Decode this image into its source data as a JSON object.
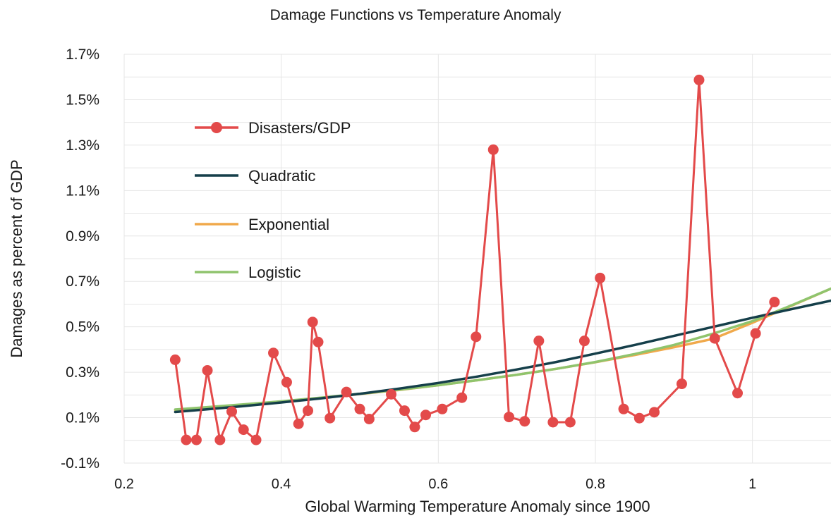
{
  "chart_data": {
    "type": "line",
    "title": "Damage Functions vs Temperature Anomaly",
    "xlabel": "Global Warming Temperature Anomaly since 1900",
    "ylabel": "Damages as percent of GDP",
    "xlim": [
      0.2,
      1.1
    ],
    "ylim": [
      -0.1,
      1.7
    ],
    "x_ticks": [
      0.2,
      0.4,
      0.6,
      0.8,
      1.0
    ],
    "x_tick_labels": [
      "0.2",
      "0.4",
      "0.6",
      "0.8",
      "1"
    ],
    "y_ticks": [
      -0.1,
      0.1,
      0.3,
      0.5,
      0.7,
      0.9,
      1.1,
      1.3,
      1.5,
      1.7
    ],
    "y_tick_labels": [
      "-0.1%",
      "0.1%",
      "0.3%",
      "0.5%",
      "0.7%",
      "0.9%",
      "1.1%",
      "1.3%",
      "1.5%",
      "1.7%"
    ],
    "grid": true,
    "legend_position": "upper-left",
    "series": [
      {
        "name": "Disasters/GDP",
        "style": "line-markers",
        "color": "#e34a4a",
        "x": [
          0.265,
          0.279,
          0.292,
          0.306,
          0.322,
          0.337,
          0.352,
          0.368,
          0.39,
          0.407,
          0.422,
          0.434,
          0.44,
          0.447,
          0.462,
          0.483,
          0.5,
          0.512,
          0.54,
          0.557,
          0.57,
          0.584,
          0.605,
          0.63,
          0.648,
          0.67,
          0.69,
          0.71,
          0.728,
          0.746,
          0.768,
          0.786,
          0.806,
          0.836,
          0.856,
          0.875,
          0.91,
          0.932,
          0.952,
          0.981,
          1.004,
          1.028
        ],
        "y": [
          0.355,
          0.002,
          0.002,
          0.308,
          0.002,
          0.127,
          0.047,
          0.002,
          0.385,
          0.256,
          0.073,
          0.131,
          0.521,
          0.433,
          0.098,
          0.213,
          0.138,
          0.094,
          0.203,
          0.131,
          0.059,
          0.112,
          0.138,
          0.188,
          0.456,
          1.28,
          0.103,
          0.084,
          0.438,
          0.08,
          0.08,
          0.438,
          0.715,
          0.138,
          0.098,
          0.124,
          0.249,
          1.587,
          0.449,
          0.208,
          0.471,
          0.609
        ]
      },
      {
        "name": "Quadratic",
        "style": "line",
        "color": "#153f4a",
        "x": [
          0.265,
          0.3,
          0.35,
          0.4,
          0.45,
          0.5,
          0.55,
          0.6,
          0.65,
          0.7,
          0.75,
          0.8,
          0.85,
          0.9,
          0.95,
          1.0,
          1.05,
          1.1
        ],
        "y": [
          0.125,
          0.135,
          0.15,
          0.167,
          0.185,
          0.205,
          0.228,
          0.253,
          0.281,
          0.312,
          0.345,
          0.382,
          0.42,
          0.46,
          0.5,
          0.54,
          0.578,
          0.615
        ]
      },
      {
        "name": "Exponential",
        "style": "line",
        "color": "#f0a94b",
        "x": [
          0.265,
          0.3,
          0.35,
          0.4,
          0.45,
          0.5,
          0.55,
          0.6,
          0.65,
          0.7,
          0.75,
          0.8,
          0.85,
          0.9,
          0.95,
          1.0,
          1.05,
          1.1
        ],
        "y": [
          0.134,
          0.143,
          0.157,
          0.171,
          0.187,
          0.204,
          0.222,
          0.243,
          0.265,
          0.289,
          0.315,
          0.344,
          0.376,
          0.41,
          0.447,
          0.518,
          0.593,
          0.668
        ]
      },
      {
        "name": "Logistic",
        "style": "line",
        "color": "#8fc46d",
        "x": [
          0.265,
          0.3,
          0.35,
          0.4,
          0.45,
          0.5,
          0.55,
          0.6,
          0.65,
          0.7,
          0.75,
          0.8,
          0.85,
          0.9,
          0.95,
          1.0,
          1.05,
          1.1
        ],
        "y": [
          0.136,
          0.145,
          0.158,
          0.172,
          0.188,
          0.205,
          0.223,
          0.243,
          0.265,
          0.289,
          0.315,
          0.345,
          0.38,
          0.42,
          0.47,
          0.525,
          0.595,
          0.668
        ]
      }
    ]
  }
}
